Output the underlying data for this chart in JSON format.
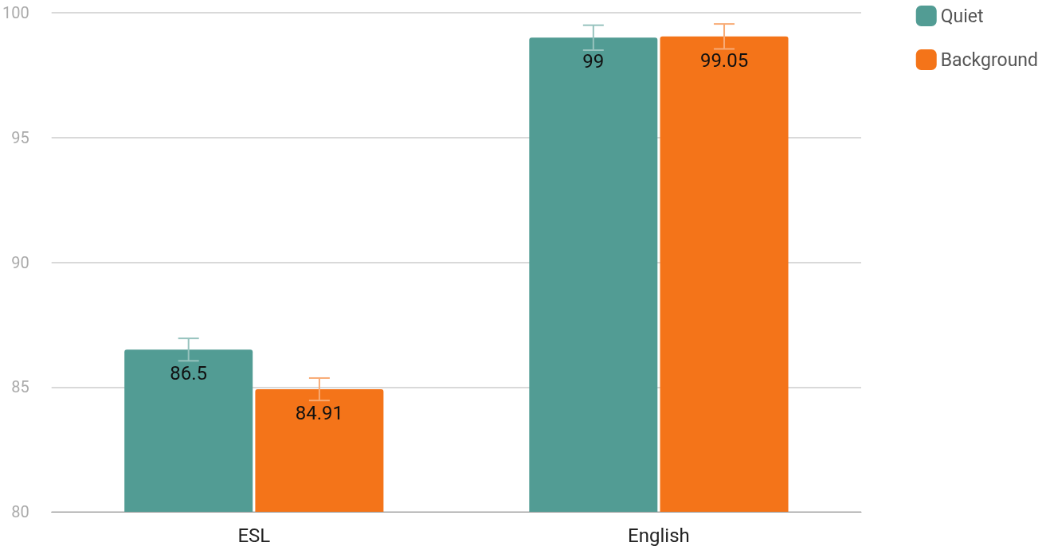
{
  "chart_data": {
    "type": "bar",
    "categories": [
      "ESL",
      "English"
    ],
    "series": [
      {
        "name": "Quiet",
        "color": "#529c94",
        "values": [
          86.5,
          99
        ],
        "errors": [
          0.45,
          0.5
        ]
      },
      {
        "name": "Background",
        "color": "#f47419",
        "values": [
          84.91,
          99.05
        ],
        "errors": [
          0.45,
          0.5
        ]
      }
    ],
    "ylim": [
      80,
      100
    ],
    "yticks": [
      80,
      85,
      90,
      95,
      100
    ],
    "grid": "y",
    "legend": "top right",
    "data_labels": true
  }
}
